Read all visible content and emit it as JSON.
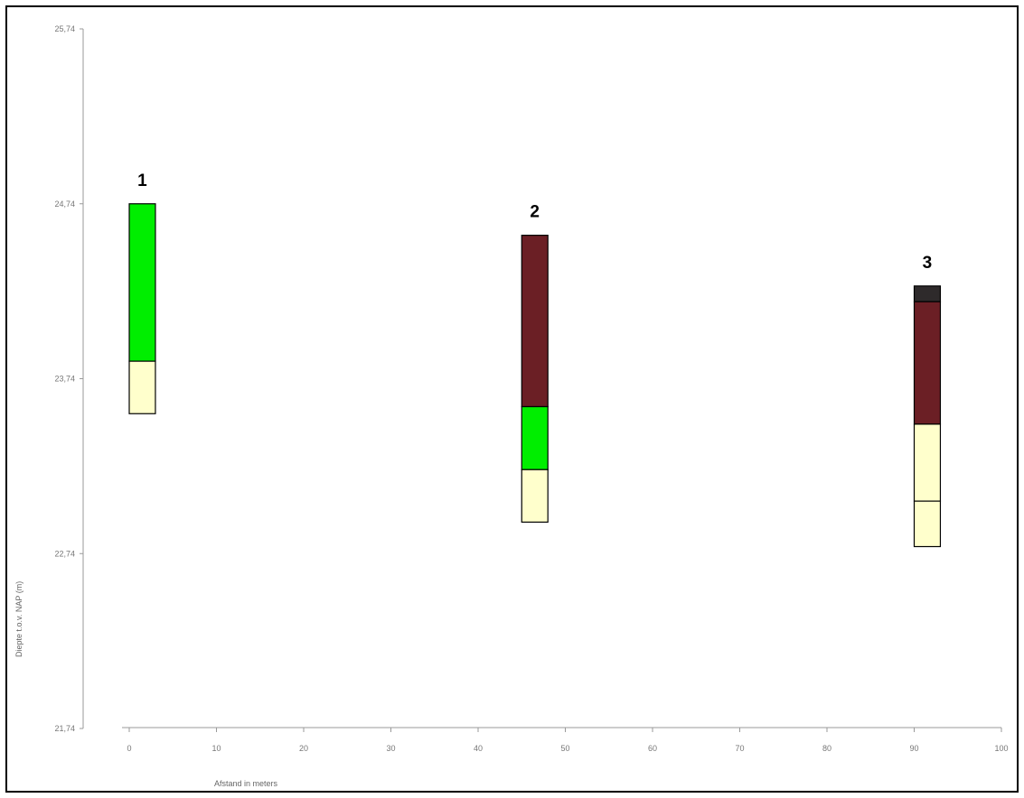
{
  "chart_data": {
    "type": "bar",
    "subtype": "borehole-stratigraphy",
    "xlabel": "Afstand in meters",
    "ylabel": "Diepte t.o.v. NAP (m)",
    "xlim": [
      0,
      100
    ],
    "x_ticks": [
      0,
      10,
      20,
      30,
      40,
      50,
      60,
      70,
      80,
      90,
      100
    ],
    "x_tick_labels": [
      "0",
      "10",
      "20",
      "30",
      "40",
      "50",
      "60",
      "70",
      "80",
      "90",
      "100"
    ],
    "ylim": [
      21.74,
      25.74
    ],
    "y_ticks": [
      25.74,
      24.74,
      23.74,
      22.74,
      21.74
    ],
    "y_tick_labels": [
      "25,74",
      "24,74",
      "23,74",
      "22,74",
      "21,74"
    ],
    "grid": false,
    "legend": "none",
    "colors": {
      "green": "#00ee00",
      "yellow": "#ffffcc",
      "maroon": "#6b1f25",
      "dark": "#2e2a2b"
    },
    "boreholes": [
      {
        "label": "1",
        "x_start": 0,
        "x_end": 3,
        "layers": [
          {
            "top": 24.74,
            "bottom": 23.84,
            "color": "green"
          },
          {
            "top": 23.84,
            "bottom": 23.54,
            "color": "yellow"
          }
        ]
      },
      {
        "label": "2",
        "x_start": 45,
        "x_end": 48,
        "layers": [
          {
            "top": 24.56,
            "bottom": 23.58,
            "color": "maroon"
          },
          {
            "top": 23.58,
            "bottom": 23.22,
            "color": "green"
          },
          {
            "top": 23.22,
            "bottom": 22.92,
            "color": "yellow"
          }
        ]
      },
      {
        "label": "3",
        "x_start": 90,
        "x_end": 93,
        "layers": [
          {
            "top": 24.27,
            "bottom": 24.18,
            "color": "dark"
          },
          {
            "top": 24.18,
            "bottom": 23.48,
            "color": "maroon"
          },
          {
            "top": 23.48,
            "bottom": 23.04,
            "color": "yellow"
          },
          {
            "top": 23.04,
            "bottom": 22.78,
            "color": "yellow"
          }
        ]
      }
    ]
  }
}
